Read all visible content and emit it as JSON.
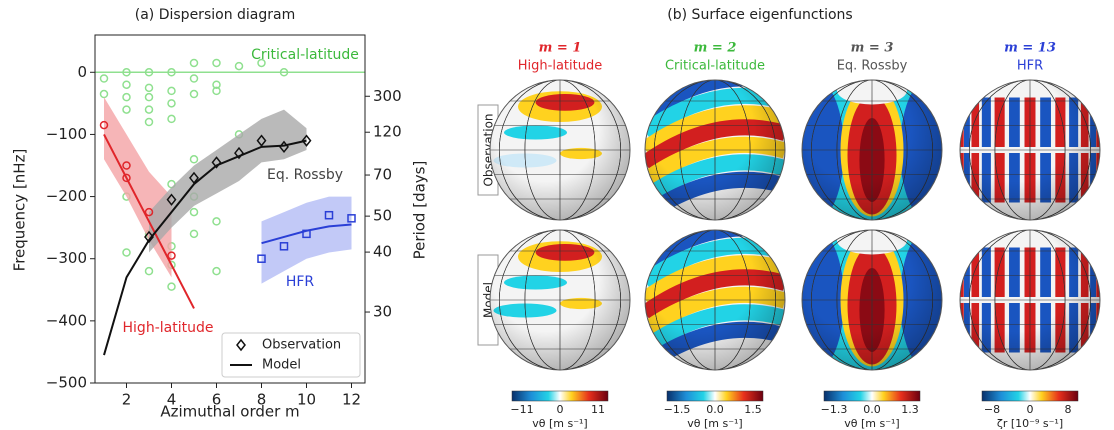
{
  "chart_data": {
    "type": "line",
    "title": "(a) Dispersion diagram",
    "xlabel": "Azimuthal order m",
    "ylabel": "Frequency [nHz]",
    "y2label": "Period [days]",
    "xlim": [
      0.6,
      12.6
    ],
    "xticks": [
      2,
      4,
      6,
      8,
      10,
      12
    ],
    "ylim": [
      -500,
      60
    ],
    "yticks": [
      0,
      -100,
      -200,
      -300,
      -400,
      -500
    ],
    "y2ticks": [
      300,
      120,
      70,
      50,
      40,
      30
    ],
    "y2scale": "reciprocal",
    "reference_line": {
      "value": 0,
      "color": "#8fe08f"
    },
    "annotations": [
      {
        "text": "Critical-latitude",
        "color": "#3cb93c"
      },
      {
        "text": "Eq. Rossby",
        "color": "#444444"
      },
      {
        "text": "HFR",
        "color": "#2a3fd6"
      },
      {
        "text": "High-latitude",
        "color": "#e0262b"
      }
    ],
    "legend": "lower right",
    "series": [
      {
        "style": "band",
        "color": "#f4a3a5",
        "x": [
          1,
          2,
          3,
          4
        ],
        "upper": [
          -40,
          -100,
          -160,
          -200
        ],
        "lower": [
          -140,
          -200,
          -270,
          -330
        ]
      },
      {
        "style": "line",
        "color": "#e0262b",
        "x": [
          1,
          2,
          3,
          4,
          5
        ],
        "values": [
          -100,
          -170,
          -240,
          -310,
          -380
        ]
      },
      {
        "style": "points",
        "marker": "circle",
        "color": "#e0262b",
        "x": [
          1,
          2,
          2,
          3,
          4
        ],
        "values": [
          -85,
          -150,
          -170,
          -225,
          -295
        ]
      },
      {
        "style": "band",
        "color": "#a9a9a9",
        "x": [
          3,
          4,
          5,
          6,
          7,
          8,
          9,
          10
        ],
        "upper": [
          -225,
          -185,
          -150,
          -125,
          -100,
          -75,
          -60,
          -90
        ],
        "lower": [
          -290,
          -250,
          -215,
          -195,
          -175,
          -145,
          -140,
          -125
        ]
      },
      {
        "name": "Model",
        "style": "line",
        "color": "#111111",
        "x": [
          1,
          2,
          3,
          4,
          5,
          6,
          7,
          8,
          9,
          10
        ],
        "values": [
          -455,
          -330,
          -270,
          -225,
          -180,
          -150,
          -135,
          -120,
          -118,
          -110
        ]
      },
      {
        "name": "Observation",
        "style": "points",
        "marker": "diamond",
        "color": "#111111",
        "x": [
          3,
          4,
          5,
          6,
          7,
          8,
          9,
          10
        ],
        "values": [
          -265,
          -205,
          -170,
          -145,
          -130,
          -110,
          -120,
          -110
        ]
      },
      {
        "style": "band",
        "color": "#b3bcf5",
        "x": [
          8,
          9,
          10,
          11,
          12
        ],
        "upper": [
          -240,
          -225,
          -210,
          -200,
          -200
        ],
        "lower": [
          -340,
          -320,
          -300,
          -290,
          -285
        ]
      },
      {
        "style": "line",
        "color": "#2a3fd6",
        "x": [
          8,
          9,
          10,
          11,
          12
        ],
        "values": [
          -275,
          -265,
          -255,
          -248,
          -245
        ]
      },
      {
        "style": "points",
        "marker": "square",
        "color": "#2a3fd6",
        "x": [
          8,
          9,
          10,
          11,
          12
        ],
        "values": [
          -300,
          -280,
          -260,
          -230,
          -235
        ]
      },
      {
        "style": "points",
        "marker": "circle",
        "color": "#8fe08f",
        "x": [
          1,
          1,
          2,
          2,
          2,
          2,
          2,
          2,
          3,
          3,
          3,
          3,
          3,
          3,
          3,
          4,
          4,
          4,
          4,
          4,
          4,
          4,
          4,
          5,
          5,
          5,
          5,
          5,
          5,
          5,
          6,
          6,
          6,
          6,
          6,
          7,
          7,
          8,
          9
        ],
        "values": [
          -10,
          -35,
          0,
          -20,
          -40,
          -60,
          -200,
          -290,
          0,
          -25,
          -40,
          -60,
          -80,
          -260,
          -320,
          0,
          -30,
          -50,
          -75,
          -180,
          -280,
          -310,
          -345,
          15,
          -10,
          -35,
          -140,
          -200,
          -225,
          -260,
          15,
          -20,
          -30,
          -240,
          -320,
          10,
          -100,
          15,
          0
        ]
      }
    ]
  },
  "panel_b": {
    "title": "(b) Surface eigenfunctions",
    "rows": [
      "Observation",
      "Model"
    ],
    "columns": [
      {
        "m": "m = 1",
        "name": "High-latitude",
        "color": "#e0262b",
        "ticks": [
          "−11",
          "0",
          "11"
        ],
        "label": "vθ [m s⁻¹]"
      },
      {
        "m": "m = 2",
        "name": "Critical-latitude",
        "color": "#3cb93c",
        "ticks": [
          "−1.5",
          "0.0",
          "1.5"
        ],
        "label": "vθ [m s⁻¹]"
      },
      {
        "m": "m = 3",
        "name": "Eq. Rossby",
        "color": "#555555",
        "ticks": [
          "−1.3",
          "0.0",
          "1.3"
        ],
        "label": "vθ [m s⁻¹]"
      },
      {
        "m": "m = 13",
        "name": "HFR",
        "color": "#2a3fd6",
        "ticks": [
          "−8",
          "0",
          "8"
        ],
        "label": "ζr [10⁻⁹ s⁻¹]"
      }
    ]
  }
}
